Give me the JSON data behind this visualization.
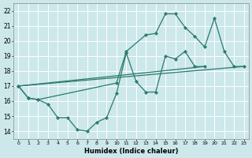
{
  "background_color": "#cce8ea",
  "grid_color": "#ffffff",
  "line_color": "#2a7a6e",
  "xlabel": "Humidex (Indice chaleur)",
  "xlim": [
    -0.5,
    23.5
  ],
  "ylim": [
    13.5,
    22.5
  ],
  "ytick_values": [
    14,
    15,
    16,
    17,
    18,
    19,
    20,
    21,
    22
  ],
  "series1_x": [
    0,
    1,
    2,
    3,
    4,
    5,
    6,
    7,
    8,
    9,
    10,
    11,
    12,
    13,
    14,
    15,
    16,
    17,
    18,
    19
  ],
  "series1_y": [
    17.0,
    16.2,
    16.1,
    15.8,
    14.9,
    14.9,
    14.1,
    14.0,
    14.6,
    14.9,
    16.5,
    19.2,
    17.3,
    16.6,
    16.6,
    19.0,
    18.8,
    19.3,
    18.3,
    18.3
  ],
  "series2_x": [
    0,
    1,
    2,
    10,
    11,
    13,
    14,
    15,
    16,
    17,
    18,
    19,
    20,
    21,
    22,
    23
  ],
  "series2_y": [
    17.0,
    16.2,
    16.1,
    17.2,
    19.3,
    20.4,
    20.5,
    21.8,
    21.8,
    20.9,
    20.3,
    19.6,
    21.5,
    19.3,
    18.3,
    18.3
  ],
  "line1_x": [
    0,
    19
  ],
  "line1_y": [
    17.0,
    18.3
  ],
  "line2_x": [
    0,
    23
  ],
  "line2_y": [
    17.0,
    18.3
  ]
}
